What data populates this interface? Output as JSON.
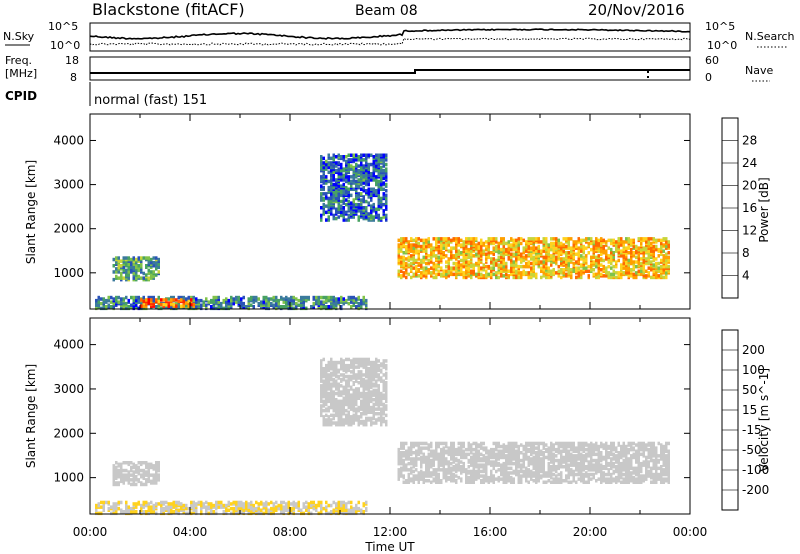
{
  "header": {
    "station": "Blackstone (fitACF)",
    "beam": "Beam 08",
    "date": "20/Nov/2016"
  },
  "top_panels": {
    "nsky_label": "N.Sky",
    "nsearch_label": "N.Search",
    "noise_ticks": [
      "10^5",
      "10^0"
    ],
    "freq_label_1": "Freq.",
    "freq_label_2": "[MHz]",
    "freq_ticks": [
      "18",
      "8"
    ],
    "nave_label": "Nave",
    "nave_ticks": [
      "60",
      "0"
    ],
    "cpid_label": "CPID",
    "cpid_value": "normal (fast) 151"
  },
  "colorbar_power": {
    "label": "Power [dB]",
    "ticks": [
      "28",
      "24",
      "20",
      "16",
      "12",
      "8",
      "4"
    ],
    "colors": [
      "#0000ff",
      "#2a52b8",
      "#3b7a9c",
      "#48a262",
      "#7fc24a",
      "#c8d43a",
      "#ffd21e",
      "#ffa000",
      "#ff6a00",
      "#ff2a00",
      "#ff0000"
    ]
  },
  "colorbar_velocity": {
    "label": "Velocity [m s^-1]",
    "ticks": [
      "200",
      "100",
      "50",
      "15",
      "-15",
      "-50",
      "-100",
      "-200"
    ],
    "colors": [
      "#1f2fb0",
      "#2a5cb8",
      "#2e8a8a",
      "#3aa24a",
      "#8fdc40",
      "#c8c8c8",
      "#c8c8c8",
      "#ffd21e",
      "#ffa500",
      "#ff7000",
      "#ff3000",
      "#ff0000"
    ]
  },
  "axes": {
    "ylabel": "Slant Range [km]",
    "xlabel": "Time UT",
    "yticks": [
      "1000",
      "2000",
      "3000",
      "4000"
    ],
    "xticks": [
      "00:00",
      "04:00",
      "08:00",
      "12:00",
      "16:00",
      "20:00",
      "00:00"
    ]
  },
  "chart_data": [
    {
      "type": "heatmap",
      "title": "Power",
      "xlabel": "Time UT",
      "ylabel": "Slant Range [km]",
      "x_range_hours": [
        0,
        24
      ],
      "y_range_km": [
        180,
        4600
      ],
      "colorbar": {
        "label": "Power [dB]",
        "range": [
          0,
          32
        ]
      },
      "regions": [
        {
          "t_start": 0.9,
          "t_end": 2.8,
          "r_low": 850,
          "r_high": 1350,
          "power_db": 10
        },
        {
          "t_start": 0.2,
          "t_end": 11.0,
          "r_low": 200,
          "r_high": 450,
          "power_db": 8
        },
        {
          "t_start": 2.0,
          "t_end": 4.2,
          "r_low": 250,
          "r_high": 420,
          "power_db": 24
        },
        {
          "t_start": 9.2,
          "t_end": 11.8,
          "r_low": 2200,
          "r_high": 3700,
          "power_db": 6
        },
        {
          "t_start": 12.3,
          "t_end": 23.2,
          "r_low": 900,
          "r_high": 1800,
          "power_db": 20
        }
      ]
    },
    {
      "type": "heatmap",
      "title": "Velocity",
      "xlabel": "Time UT",
      "ylabel": "Slant Range [km]",
      "x_range_hours": [
        0,
        24
      ],
      "y_range_km": [
        180,
        4600
      ],
      "colorbar": {
        "label": "Velocity [m s^-1]",
        "range": [
          -250,
          250
        ]
      },
      "regions": [
        {
          "t_start": 0.9,
          "t_end": 2.8,
          "r_low": 850,
          "r_high": 1350,
          "velocity": 0
        },
        {
          "t_start": 0.2,
          "t_end": 11.0,
          "r_low": 200,
          "r_high": 480,
          "velocity": -40
        },
        {
          "t_start": 9.2,
          "t_end": 11.8,
          "r_low": 2200,
          "r_high": 3700,
          "velocity": 0
        },
        {
          "t_start": 12.3,
          "t_end": 23.2,
          "r_low": 900,
          "r_high": 1800,
          "velocity": 0
        }
      ]
    }
  ]
}
